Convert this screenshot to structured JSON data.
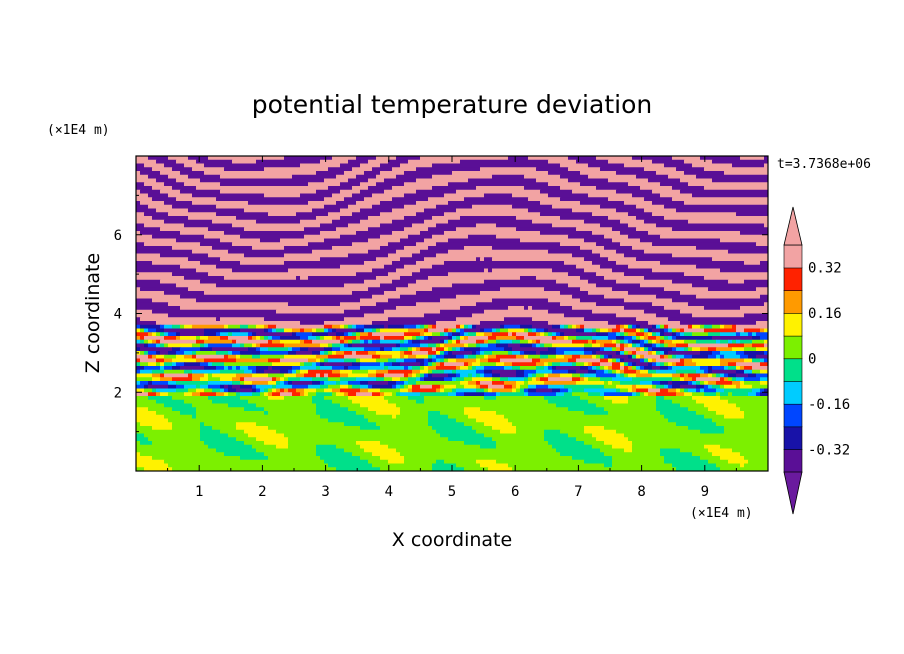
{
  "chart_data": {
    "type": "heatmap",
    "title": "potential temperature deviation",
    "xlabel": "X coordinate",
    "ylabel": "Z coordinate",
    "x_unit": "(×1E4 m)",
    "y_unit": "(×1E4 m)",
    "time_label": "t=3.7368e+06",
    "xlim": [
      0,
      10
    ],
    "ylim": [
      0,
      8
    ],
    "x_ticks": [
      "1",
      "2",
      "3",
      "4",
      "5",
      "6",
      "7",
      "8",
      "9"
    ],
    "x_tick_values": [
      1,
      2,
      3,
      4,
      5,
      6,
      7,
      8,
      9
    ],
    "y_ticks": [
      "2",
      "4",
      "6"
    ],
    "y_tick_values": [
      2,
      4,
      6
    ],
    "colorbar": {
      "labels": [
        "0.32",
        "0.16",
        "0",
        "-0.16",
        "-0.32"
      ],
      "label_values": [
        0.32,
        0.16,
        0,
        -0.16,
        -0.32
      ],
      "levels": [
        -0.4,
        -0.32,
        -0.24,
        -0.16,
        -0.08,
        0,
        0.08,
        0.16,
        0.24,
        0.32,
        0.4
      ],
      "colors": [
        "#5a0f96",
        "#1812a8",
        "#0046ff",
        "#00ccff",
        "#00e08a",
        "#7cf000",
        "#fff200",
        "#ff9a00",
        "#ff2200",
        "#f2a3a3"
      ],
      "under_color": "#6a1a9e",
      "over_color": "#f2a3a3",
      "extend": "both"
    }
  }
}
